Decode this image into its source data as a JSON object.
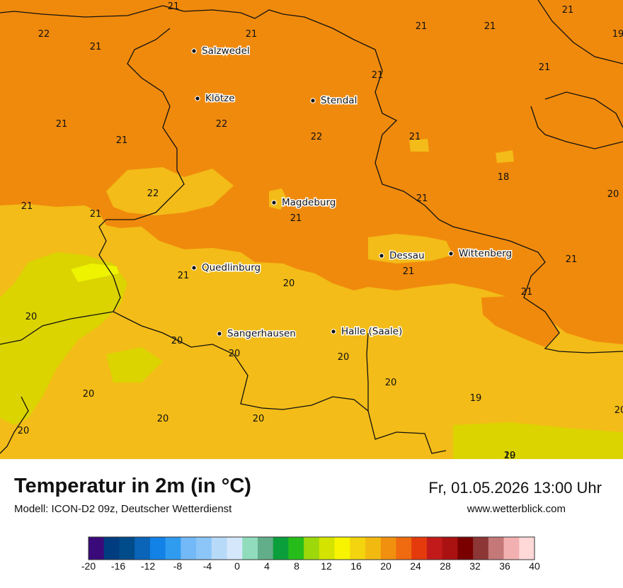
{
  "map": {
    "colors": {
      "c18_19": "#f0c810",
      "c19_20": "#dbd400",
      "c20_22": "#f08a0c",
      "c22_24": "#f3bc18",
      "border": "#111111"
    },
    "value_labels": [
      "21",
      "22",
      "21",
      "21",
      "21",
      "21",
      "21",
      "19",
      "21",
      "21",
      "21",
      "21",
      "22",
      "22",
      "21",
      "18",
      "20",
      "22",
      "21",
      "21",
      "21",
      "21",
      "21",
      "21",
      "20",
      "21",
      "21",
      "20",
      "20",
      "20",
      "20",
      "20",
      "19",
      "20",
      "20",
      "20",
      "20",
      "20",
      "20",
      "19"
    ],
    "cities": [
      "Salzwedel",
      "Klötze",
      "Stendal",
      "Magdeburg",
      "Dessau",
      "Wittenberg",
      "Quedlinburg",
      "Sangerhausen",
      "Halle (Saale)"
    ]
  },
  "footer": {
    "title": "Temperatur in 2m (in °C)",
    "subtitle": "Modell: ICON-D2 09z, Deutscher Wetterdienst",
    "datetime": "Fr, 01.05.2026 13:00 Uhr",
    "website": "www.wetterblick.com"
  },
  "legend": {
    "tick_labels": [
      "-20",
      "-16",
      "-12",
      "-8",
      "-4",
      "0",
      "4",
      "8",
      "12",
      "16",
      "20",
      "24",
      "28",
      "32",
      "36",
      "40"
    ],
    "colors": [
      "#3a0a7a",
      "#003d80",
      "#004b8a",
      "#0a64b8",
      "#1282e6",
      "#2f9cf0",
      "#73b8f7",
      "#8cc6f8",
      "#b8daf9",
      "#d5e8fb",
      "#90dcbc",
      "#63ae8a",
      "#0a9f3a",
      "#26bd1a",
      "#9cd80a",
      "#d4e400",
      "#f8f400",
      "#f3d40e",
      "#f2ba10",
      "#f0900e",
      "#f06a10",
      "#e53a0c",
      "#c21a1a",
      "#aa1212",
      "#7a0000",
      "#8c3636",
      "#c47878",
      "#f2b0b0",
      "#ffd8d8"
    ]
  }
}
